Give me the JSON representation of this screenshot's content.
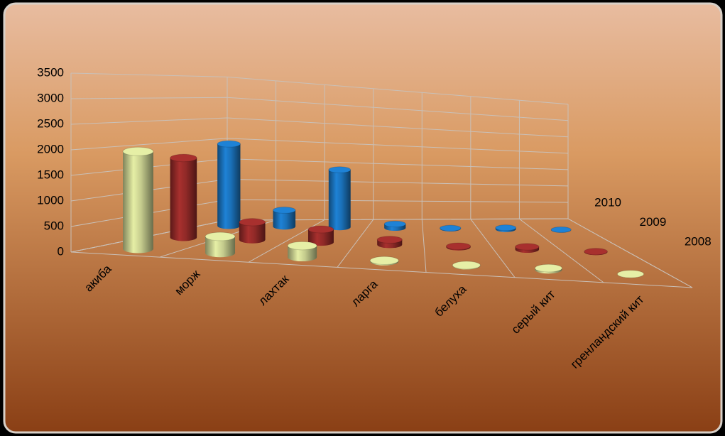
{
  "chart_data": {
    "type": "bar",
    "categories": [
      "акиба",
      "морж",
      "лахтак",
      "ларга",
      "белуха",
      "серый кит",
      "гренландский кит"
    ],
    "series": [
      {
        "name": "2008",
        "color": "#e6efa6",
        "values": [
          2000,
          350,
          250,
          20,
          10,
          40,
          0
        ]
      },
      {
        "name": "2009",
        "color": "#a8302e",
        "values": [
          1750,
          400,
          300,
          120,
          20,
          70,
          10
        ]
      },
      {
        "name": "2010",
        "color": "#1e82d6",
        "values": [
          1950,
          400,
          1450,
          100,
          10,
          40,
          5
        ]
      }
    ],
    "ylim": [
      0,
      3500
    ],
    "yticks": [
      0,
      500,
      1000,
      1500,
      2000,
      2500,
      3000,
      3500
    ],
    "grid": true
  }
}
